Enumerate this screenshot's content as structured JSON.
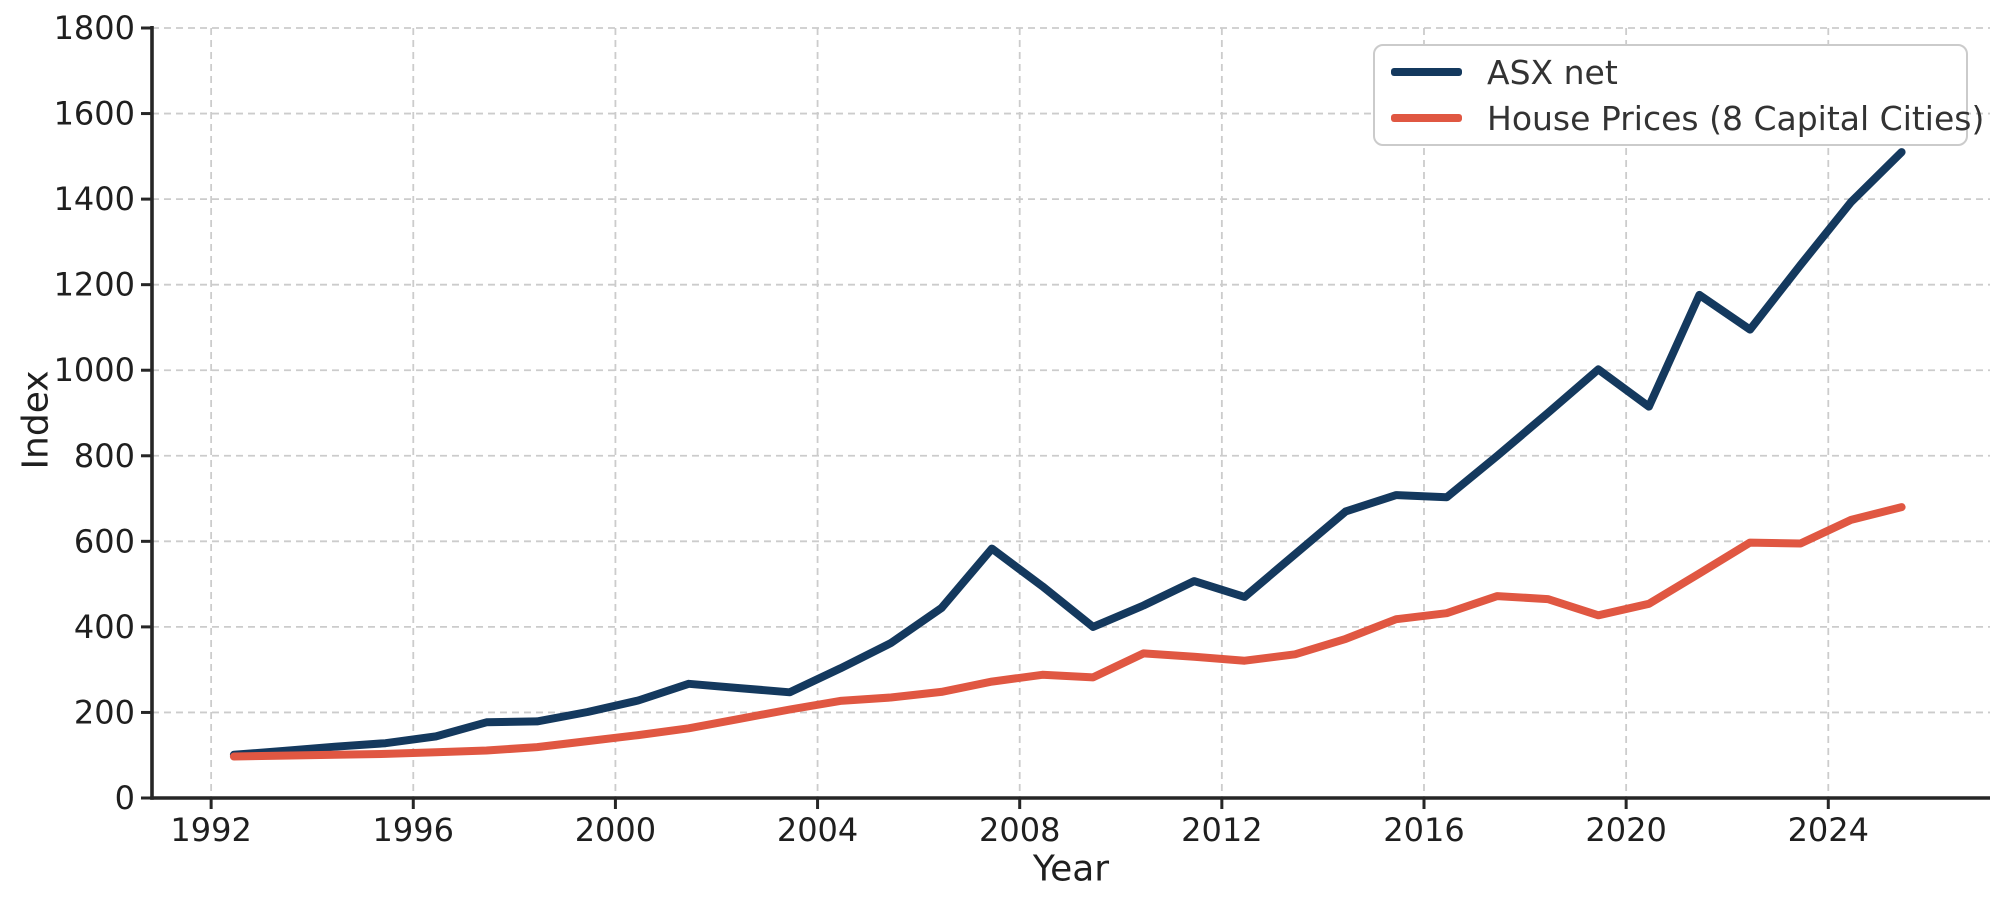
{
  "chart_data": {
    "type": "line",
    "title": "",
    "xlabel": "Year",
    "ylabel": "Index",
    "x": [
      1992,
      1993,
      1994,
      1995,
      1996,
      1997,
      1998,
      1999,
      2000,
      2001,
      2002,
      2003,
      2004,
      2005,
      2006,
      2007,
      2008,
      2009,
      2010,
      2011,
      2012,
      2013,
      2014,
      2015,
      2016,
      2017,
      2018,
      2019,
      2020,
      2021,
      2022,
      2023,
      2024,
      2025
    ],
    "x_point_offset": 0.45,
    "series": [
      {
        "name": "ASX net",
        "color": "#14395E",
        "line_width": 8,
        "values": [
          101,
          110,
          120,
          128,
          144,
          177,
          179,
          201,
          228,
          267,
          257,
          247,
          303,
          362,
          444,
          583,
          495,
          400,
          450,
          507,
          470,
          570,
          670,
          708,
          703,
          800,
          900,
          1002,
          915,
          1176,
          1095,
          1246,
          1393,
          1510
        ]
      },
      {
        "name": "House Prices (8 Capital Cities)",
        "color": "#E05742",
        "line_width": 8,
        "values": [
          97,
          99,
          101,
          103,
          107,
          111,
          119,
          133,
          147,
          163,
          185,
          207,
          227,
          235,
          248,
          272,
          288,
          282,
          338,
          330,
          321,
          336,
          372,
          418,
          432,
          472,
          465,
          427,
          454,
          525,
          597,
          595,
          650,
          680
        ]
      }
    ],
    "xlim": [
      1990.83,
      2027.2
    ],
    "ylim": [
      0,
      1800
    ],
    "xticks": [
      1992,
      1996,
      2000,
      2004,
      2008,
      2012,
      2016,
      2020,
      2024
    ],
    "yticks": [
      0,
      200,
      400,
      600,
      800,
      1000,
      1200,
      1400,
      1600,
      1800
    ],
    "grid": "dashed",
    "grid_color": "#cccccc",
    "axis_color": "#262626",
    "tick_label_color": "#1f1f1f",
    "tick_label_size": 32,
    "background": "#ffffff",
    "legend_position": "top-right"
  }
}
